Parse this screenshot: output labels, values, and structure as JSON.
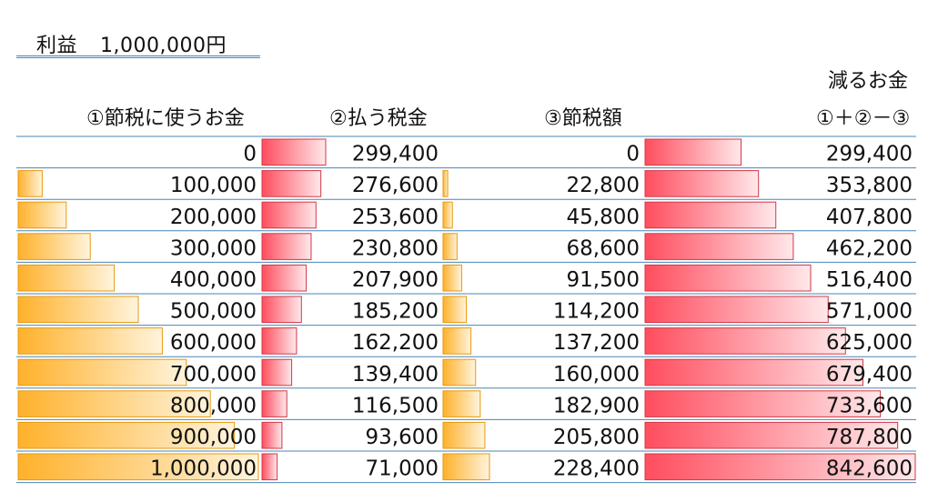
{
  "title": {
    "label": "利益",
    "value": "1,000,000円"
  },
  "headers": {
    "col1": "①節税に使うお金",
    "col2": "②払う税金",
    "col3": "③節税額",
    "col4_top": "減るお金",
    "col4": "①＋②－③"
  },
  "colors": {
    "orange": "#ffb12b",
    "red": "#ff4d5e",
    "rule": "#4a86b4"
  },
  "chart_data": {
    "type": "table",
    "columns": [
      "①節税に使うお金",
      "②払う税金",
      "③節税額",
      "①＋②－③"
    ],
    "rows": [
      {
        "spend": 0,
        "tax": 299400,
        "saving": 0,
        "net": 299400
      },
      {
        "spend": 100000,
        "tax": 276600,
        "saving": 22800,
        "net": 353800
      },
      {
        "spend": 200000,
        "tax": 253600,
        "saving": 45800,
        "net": 407800
      },
      {
        "spend": 300000,
        "tax": 230800,
        "saving": 68600,
        "net": 462200
      },
      {
        "spend": 400000,
        "tax": 207900,
        "saving": 91500,
        "net": 516400
      },
      {
        "spend": 500000,
        "tax": 185200,
        "saving": 114200,
        "net": 571000
      },
      {
        "spend": 600000,
        "tax": 162200,
        "saving": 137200,
        "net": 625000
      },
      {
        "spend": 700000,
        "tax": 139400,
        "saving": 160000,
        "net": 679400
      },
      {
        "spend": 800000,
        "tax": 116500,
        "saving": 182900,
        "net": 733600
      },
      {
        "spend": 900000,
        "tax": 93600,
        "saving": 205800,
        "net": 787800
      },
      {
        "spend": 1000000,
        "tax": 71000,
        "saving": 228400,
        "net": 842600
      }
    ]
  }
}
